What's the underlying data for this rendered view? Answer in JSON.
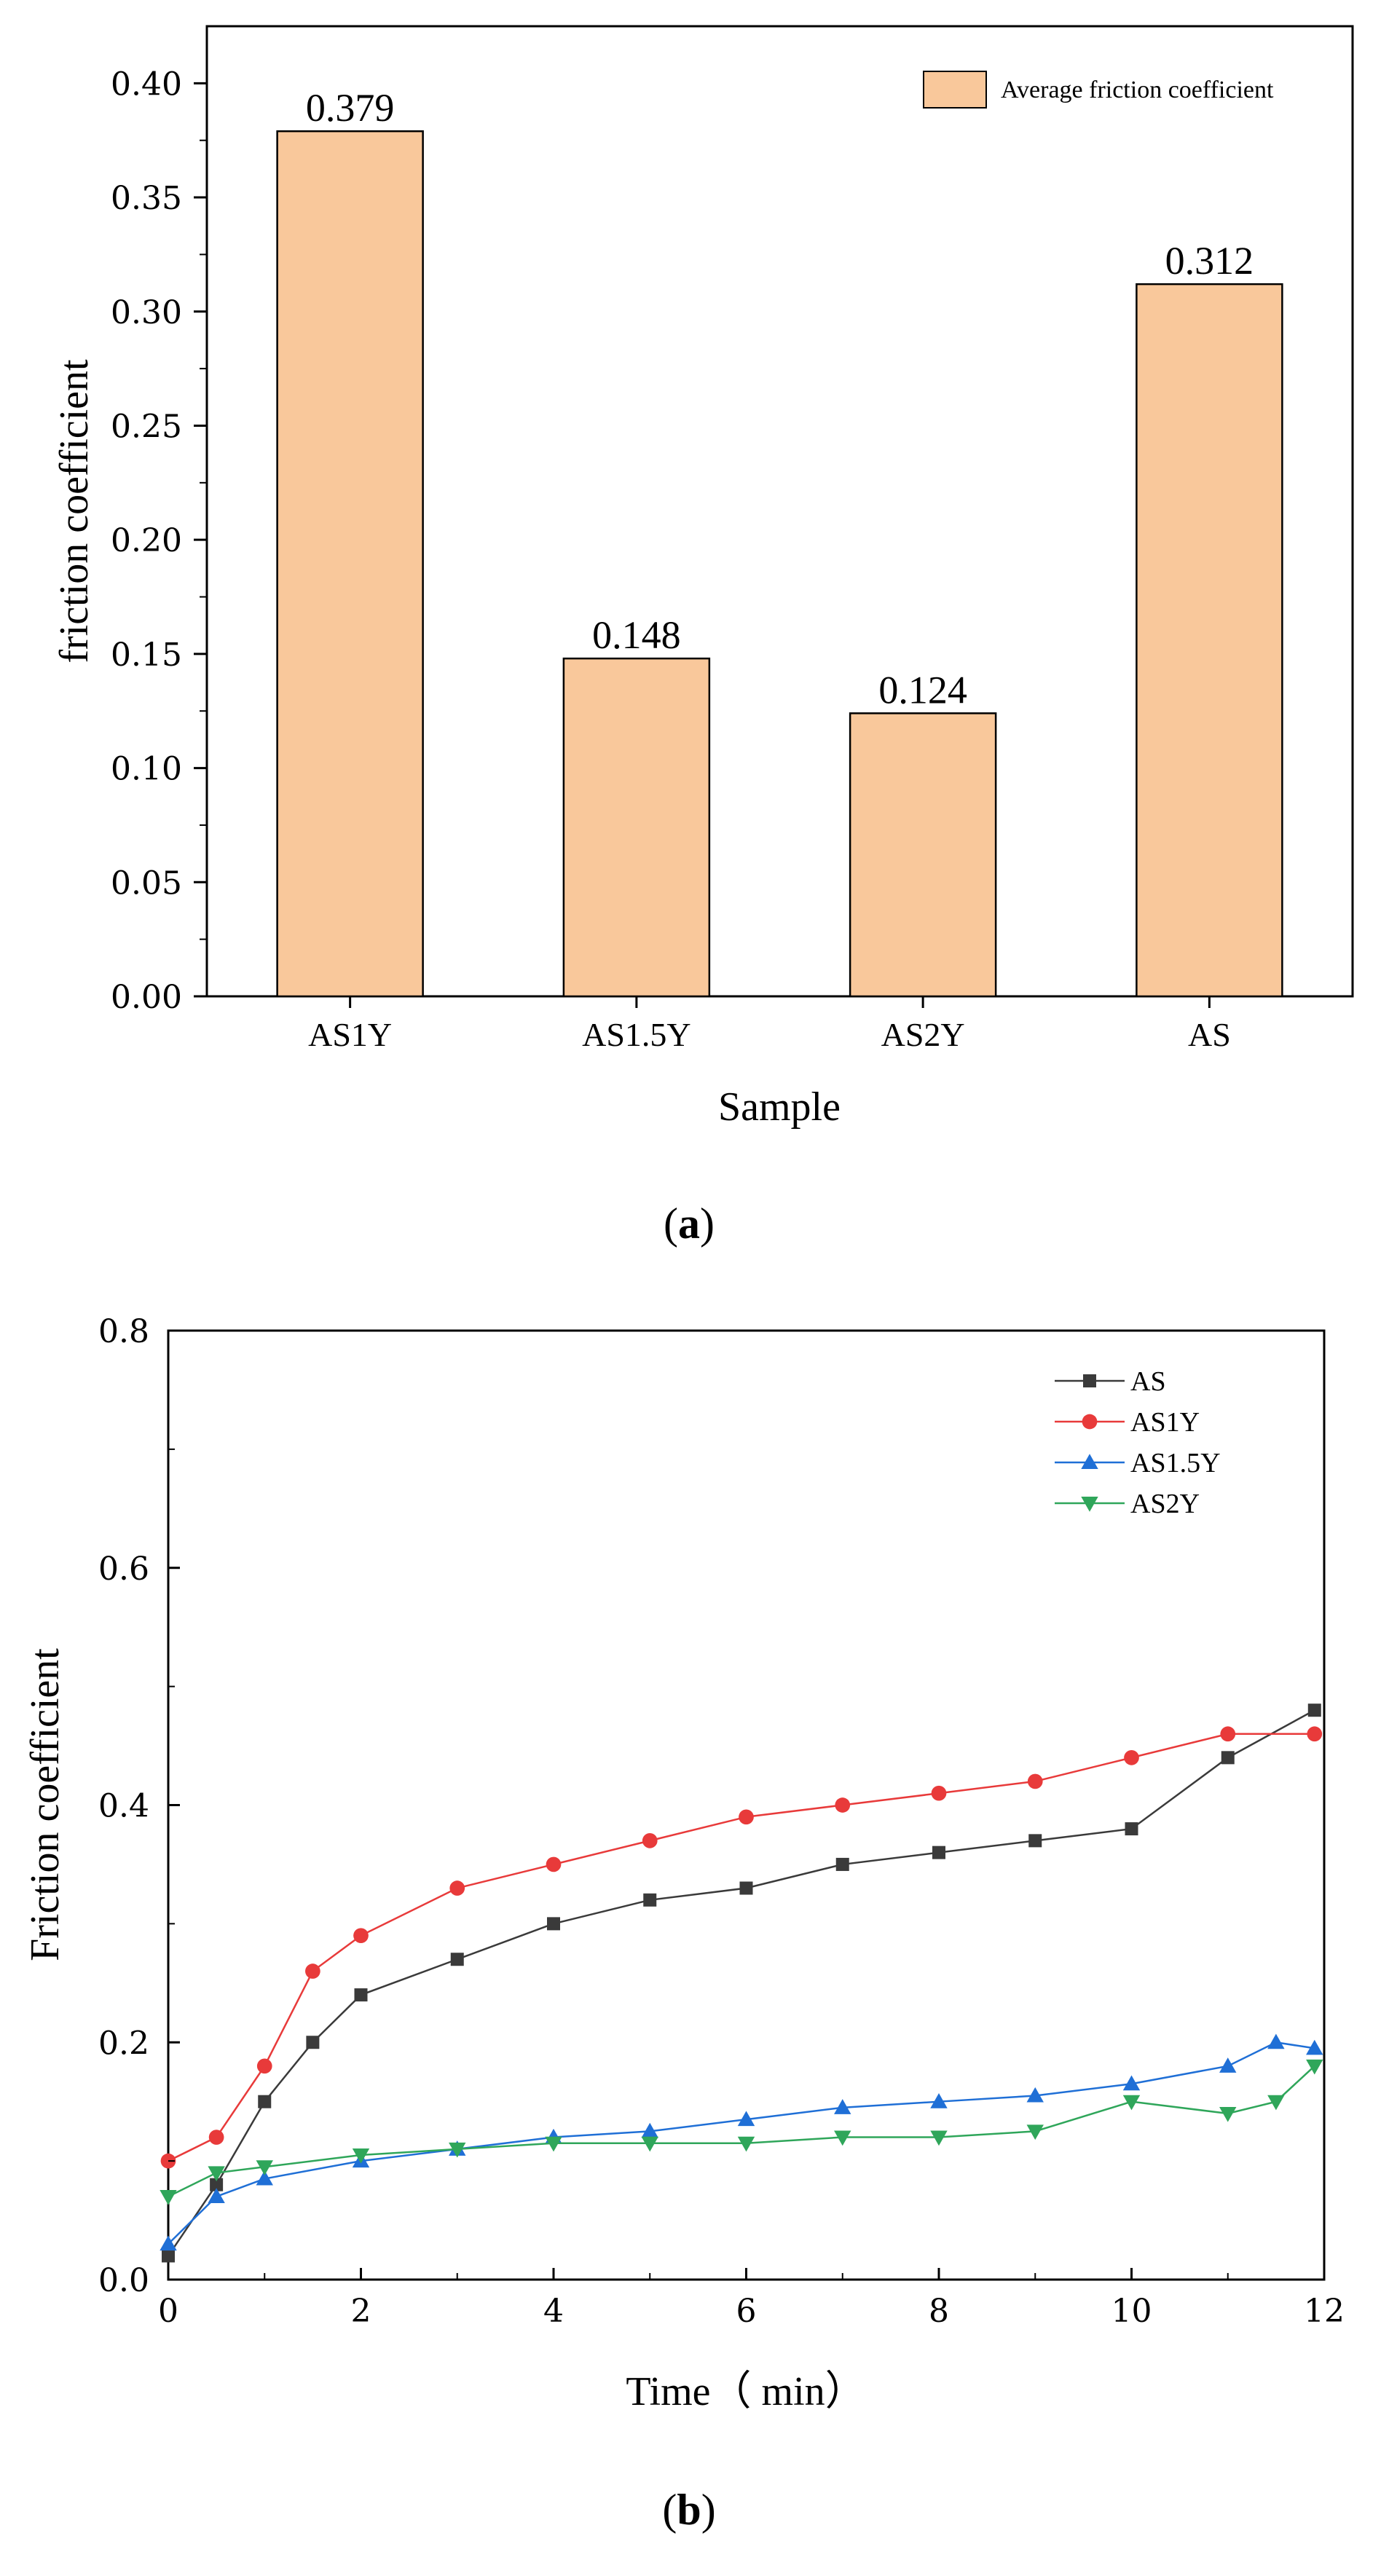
{
  "panel_a": {
    "caption_open": "(",
    "caption_letter": "a",
    "caption_close": ")"
  },
  "panel_b": {
    "caption_open": "(",
    "caption_letter": "b",
    "caption_close": ")"
  },
  "chart_data": [
    {
      "type": "bar",
      "xlabel": "Sample",
      "ylabel": "friction coefficient",
      "ylim": [
        0,
        0.425
      ],
      "yticks": [
        "0.00",
        "0.05",
        "0.10",
        "0.15",
        "0.20",
        "0.25",
        "0.30",
        "0.35",
        "0.40"
      ],
      "categories": [
        "AS1Y",
        "AS1.5Y",
        "AS2Y",
        "AS"
      ],
      "series": [
        {
          "name": "Average friction coefficient",
          "values": [
            0.379,
            0.148,
            0.124,
            0.312
          ]
        }
      ],
      "data_labels": [
        "0.379",
        "0.148",
        "0.124",
        "0.312"
      ],
      "legend": "top-right",
      "colors": {
        "bar": "#F9C89B",
        "edge": "#000000"
      }
    },
    {
      "type": "line",
      "xlabel": "Time（ min）",
      "ylabel": "Friction coefficient",
      "xlim": [
        0,
        12
      ],
      "ylim": [
        0,
        0.8
      ],
      "xticks": [
        "0",
        "2",
        "4",
        "6",
        "8",
        "10",
        "12"
      ],
      "yticks": [
        "0.0",
        "0.2",
        "0.4",
        "0.6",
        "0.8"
      ],
      "legend": "top-right",
      "series": [
        {
          "name": "AS",
          "color": "#3a3a3a",
          "marker": "square",
          "x": [
            0,
            0.5,
            1.0,
            1.5,
            2.0,
            3.0,
            4.0,
            5.0,
            6.0,
            7.0,
            8.0,
            9.0,
            10.0,
            11.0,
            11.9
          ],
          "y": [
            0.02,
            0.08,
            0.15,
            0.2,
            0.24,
            0.27,
            0.3,
            0.32,
            0.33,
            0.35,
            0.36,
            0.37,
            0.38,
            0.44,
            0.48
          ]
        },
        {
          "name": "AS1Y",
          "color": "#e83a3a",
          "marker": "circle",
          "x": [
            0,
            0.5,
            1.0,
            1.5,
            2.0,
            3.0,
            4.0,
            5.0,
            6.0,
            7.0,
            8.0,
            9.0,
            10.0,
            11.0,
            11.9
          ],
          "y": [
            0.1,
            0.12,
            0.18,
            0.26,
            0.29,
            0.33,
            0.35,
            0.37,
            0.39,
            0.4,
            0.41,
            0.42,
            0.44,
            0.46,
            0.46
          ]
        },
        {
          "name": "AS1.5Y",
          "color": "#1f6fd6",
          "marker": "triangle-up",
          "x": [
            0,
            0.5,
            1.0,
            2.0,
            3.0,
            4.0,
            5.0,
            6.0,
            7.0,
            8.0,
            9.0,
            10.0,
            11.0,
            11.5,
            11.9
          ],
          "y": [
            0.03,
            0.07,
            0.085,
            0.1,
            0.11,
            0.12,
            0.125,
            0.135,
            0.145,
            0.15,
            0.155,
            0.165,
            0.18,
            0.2,
            0.195
          ]
        },
        {
          "name": "AS2Y",
          "color": "#2fa65a",
          "marker": "triangle-down",
          "x": [
            0,
            0.5,
            1.0,
            2.0,
            3.0,
            4.0,
            5.0,
            6.0,
            7.0,
            8.0,
            9.0,
            10.0,
            11.0,
            11.5,
            11.9
          ],
          "y": [
            0.07,
            0.09,
            0.095,
            0.105,
            0.11,
            0.115,
            0.115,
            0.115,
            0.12,
            0.12,
            0.125,
            0.15,
            0.14,
            0.15,
            0.18
          ]
        }
      ]
    }
  ]
}
